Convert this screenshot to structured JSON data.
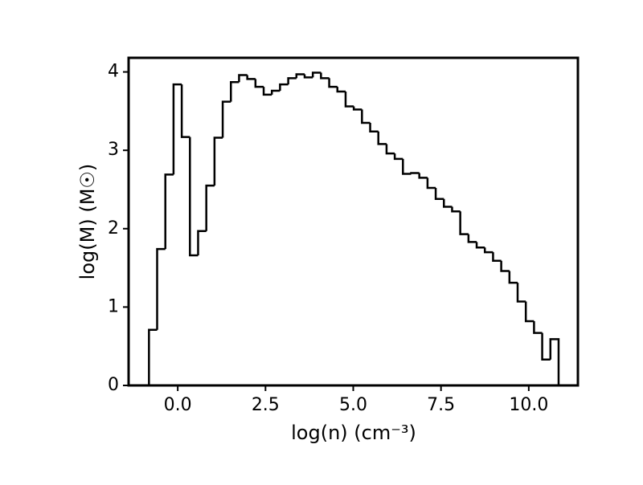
{
  "chart_data": {
    "type": "histogram",
    "xlabel": "log(n) (cm⁻³)",
    "ylabel": "log(M) (M☉)",
    "bins": [
      -0.82,
      -0.587,
      -0.353,
      -0.12,
      0.114,
      0.347,
      0.58,
      0.814,
      1.047,
      1.281,
      1.514,
      1.747,
      1.981,
      2.214,
      2.448,
      2.681,
      2.914,
      3.148,
      3.381,
      3.615,
      3.848,
      4.081,
      4.315,
      4.548,
      4.782,
      5.015,
      5.248,
      5.482,
      5.715,
      5.949,
      6.182,
      6.415,
      6.649,
      6.882,
      7.116,
      7.349,
      7.582,
      7.816,
      8.049,
      8.283,
      8.516,
      8.749,
      8.983,
      9.216,
      9.45,
      9.683,
      9.916,
      10.15,
      10.383,
      10.617,
      10.85
    ],
    "values": [
      0.71,
      1.74,
      2.69,
      3.84,
      3.17,
      1.66,
      1.97,
      2.55,
      3.16,
      3.62,
      3.87,
      3.96,
      3.91,
      3.81,
      3.71,
      3.76,
      3.84,
      3.92,
      3.97,
      3.93,
      3.99,
      3.92,
      3.81,
      3.75,
      3.56,
      3.52,
      3.35,
      3.24,
      3.08,
      2.96,
      2.89,
      2.7,
      2.71,
      2.65,
      2.52,
      2.38,
      2.28,
      2.22,
      1.93,
      1.83,
      1.76,
      1.7,
      1.59,
      1.46,
      1.31,
      1.07,
      0.82,
      0.67,
      0.33,
      0.59
    ],
    "color": "#000000",
    "xlim": [
      -1.4,
      11.4
    ],
    "ylim": [
      0,
      4.18
    ],
    "xticks": [
      {
        "value": 0,
        "label": "0.0"
      },
      {
        "value": 2.5,
        "label": "2.5"
      },
      {
        "value": 5,
        "label": "5.0"
      },
      {
        "value": 7.5,
        "label": "7.5"
      },
      {
        "value": 10,
        "label": "10.0"
      }
    ],
    "yticks": [
      0,
      1,
      2,
      3,
      4
    ]
  }
}
